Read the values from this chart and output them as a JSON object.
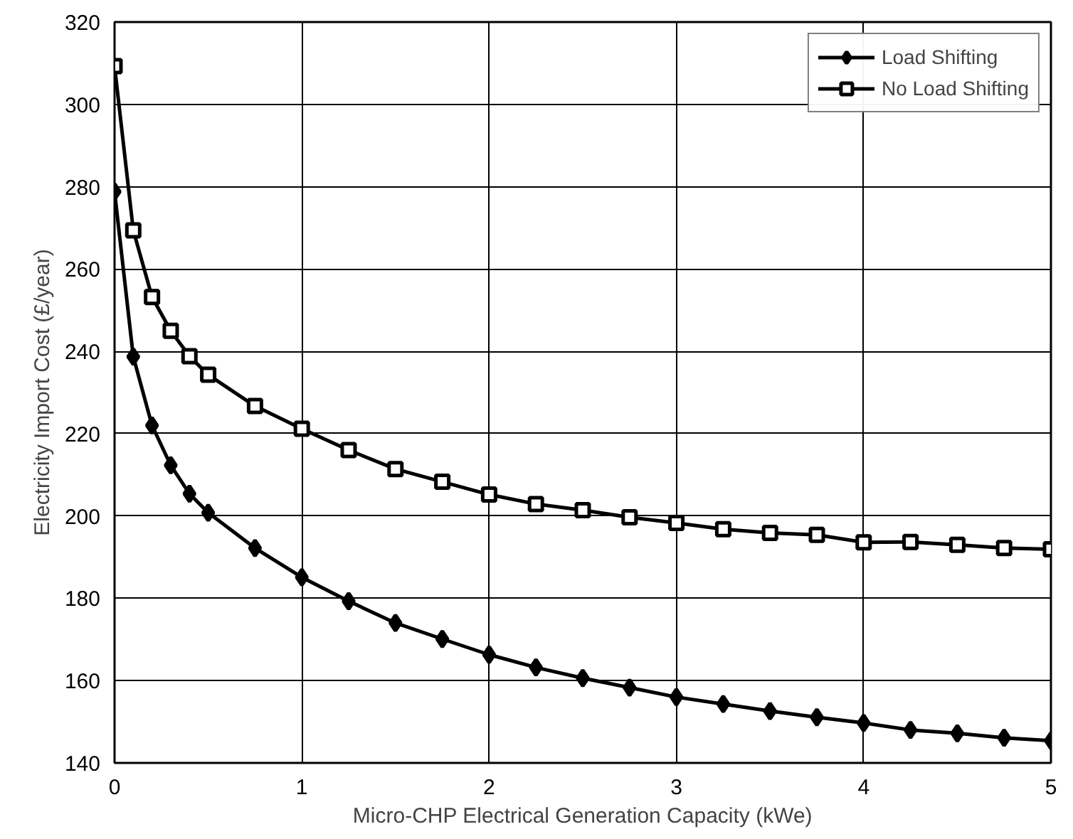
{
  "chart_data": {
    "type": "line",
    "xlabel": "Micro-CHP Electrical Generation Capacity (kWe)",
    "ylabel": "Electricity Import Cost (£/year)",
    "x": [
      0,
      0.1,
      0.2,
      0.3,
      0.4,
      0.5,
      0.75,
      1,
      1.25,
      1.5,
      1.75,
      2,
      2.25,
      2.5,
      2.75,
      3,
      3.25,
      3.5,
      3.75,
      4,
      4.25,
      4.5,
      4.75,
      5
    ],
    "series": [
      {
        "name": "Load Shifting",
        "color": "#000000",
        "marker": "diamond",
        "values": [
          278.8,
          238.7,
          222.0,
          212.3,
          205.4,
          200.8,
          192.2,
          185.1,
          179.3,
          174.0,
          170.1,
          166.3,
          163.2,
          160.6,
          158.3,
          156.0,
          154.3,
          152.6,
          151.1,
          149.7,
          148.0,
          147.2,
          146.1,
          145.4
        ]
      },
      {
        "name": "No Load Shifting",
        "color": "#000000",
        "marker": "square",
        "values": [
          309.3,
          269.4,
          253.2,
          245.0,
          238.8,
          234.3,
          226.7,
          221.2,
          216.0,
          211.4,
          208.3,
          205.2,
          202.9,
          201.4,
          199.7,
          198.3,
          196.8,
          195.9,
          195.4,
          193.6,
          193.7,
          193.0,
          192.2,
          191.9
        ]
      }
    ],
    "xlim": [
      0,
      5
    ],
    "ylim": [
      140,
      320
    ],
    "xticks": [
      0,
      1,
      2,
      3,
      4,
      5
    ],
    "yticks": [
      140,
      160,
      180,
      200,
      220,
      240,
      260,
      280,
      300,
      320
    ],
    "grid": true,
    "legend": "top right",
    "line_style": "solid"
  }
}
